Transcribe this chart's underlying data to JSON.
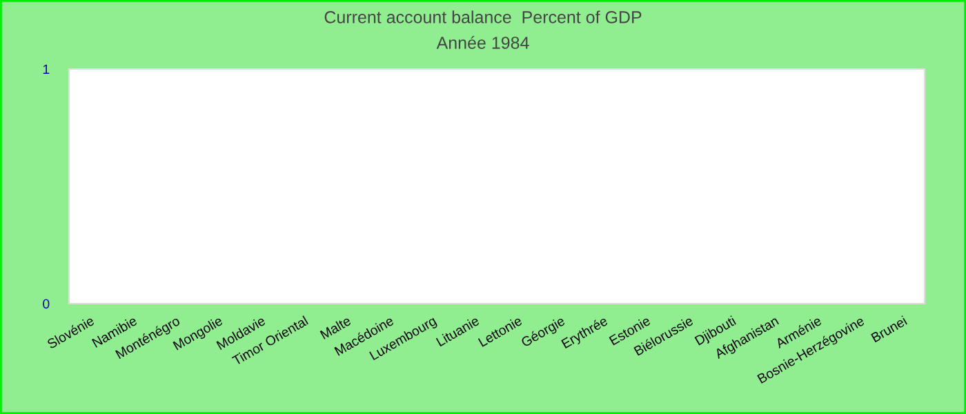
{
  "chart_data": {
    "type": "bar",
    "title": "Current account balance  Percent of GDP",
    "subtitle": "Année 1984",
    "categories": [
      "Slovénie",
      "Namibie",
      "Monténégro",
      "Mongolie",
      "Moldavie",
      "Timor Oriental",
      "Malte",
      "Macédoine",
      "Luxembourg",
      "Lituanie",
      "Lettonie",
      "Géorgie",
      "Erythrée",
      "Estonie",
      "Biélorussie",
      "Djibouti",
      "Afghanistan",
      "Arménie",
      "Bosnie-Herzégovine",
      "Brunei"
    ],
    "values": [
      null,
      null,
      null,
      null,
      null,
      null,
      null,
      null,
      null,
      null,
      null,
      null,
      null,
      null,
      null,
      null,
      null,
      null,
      null,
      null
    ],
    "ylim": [
      0,
      1
    ],
    "yticks": [
      0,
      1
    ],
    "grid": false,
    "legend": false
  }
}
